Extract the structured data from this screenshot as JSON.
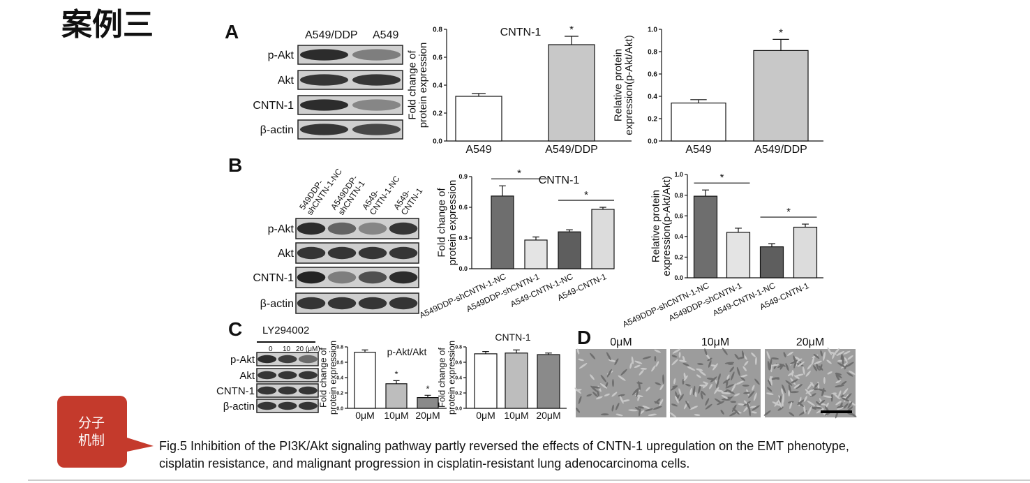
{
  "header": {
    "title": "案例三"
  },
  "panels": {
    "A": {
      "label": "A",
      "blot_columns": [
        "A549/DDP",
        "A549"
      ],
      "blot_rows": [
        "p-Akt",
        "Akt",
        "CNTN-1",
        "β-actin"
      ]
    },
    "B": {
      "label": "B",
      "blot_columns": [
        [
          "549DDP-",
          "shCNTN-1-NC"
        ],
        [
          "A549DDP-",
          "shCNTN-1"
        ],
        [
          "A549-",
          "CNTN-1-NC"
        ],
        [
          "A549-",
          "CNTN-1"
        ]
      ],
      "blot_rows": [
        "p-Akt",
        "Akt",
        "CNTN-1",
        "β-actin"
      ]
    },
    "C": {
      "label": "C",
      "treatment": "LY294002",
      "doses": [
        "0",
        "10",
        "20 (μM)"
      ],
      "blot_rows": [
        "p-Akt",
        "Akt",
        "CNTN-1",
        "β-actin"
      ]
    },
    "D": {
      "label": "D",
      "images": [
        "0μM",
        "10μM",
        "20μM"
      ]
    }
  },
  "callout": [
    "分子",
    "机制"
  ],
  "caption": [
    "Fig.5 Inhibition of the PI3K/Akt signaling pathway partly reversed the effects of CNTN-1 upregulation on the EMT phenotype,",
    "cisplatin resistance, and malignant progression in cisplatin-resistant lung adenocarcinoma cells."
  ],
  "chart_data": [
    {
      "type": "bar",
      "title": "CNTN-1",
      "ylabel": [
        "Fold change of",
        "protein expression"
      ],
      "categories": [
        "A549",
        "A549/DDP"
      ],
      "values": [
        0.32,
        0.69
      ],
      "errors": [
        0.02,
        0.06
      ],
      "colors": [
        "#ffffff",
        "#c8c8c8"
      ],
      "value_annotations": [
        null,
        "*"
      ],
      "ylim": [
        0,
        0.8
      ],
      "yticks": [
        {
          "value": 0,
          "label": "0.0"
        },
        0.2,
        0.4,
        0.6,
        0.8
      ]
    },
    {
      "type": "bar",
      "ylabel": [
        "Relative protein",
        "expression(p-Akt/Akt)"
      ],
      "categories": [
        "A549",
        "A549/DDP"
      ],
      "values": [
        0.34,
        0.81
      ],
      "errors": [
        0.03,
        0.1
      ],
      "colors": [
        "#ffffff",
        "#c8c8c8"
      ],
      "value_annotations": [
        null,
        "*"
      ],
      "ylim": [
        0,
        1
      ],
      "yticks": [
        {
          "value": 0,
          "label": "0.0"
        },
        0.2,
        0.4,
        0.6,
        0.8,
        {
          "value": 1,
          "label": "1.0"
        }
      ]
    },
    {
      "type": "bar",
      "title": "CNTN-1",
      "ylabel": [
        "Fold change of",
        "protein expression"
      ],
      "categories": [
        "A549DDP-shCNTN-1-NC",
        "A549DDP-shCNTN-1",
        "A549-CNTN-1-NC",
        "A549-CNTN-1"
      ],
      "values": [
        0.71,
        0.28,
        0.36,
        0.58
      ],
      "errors": [
        0.1,
        0.03,
        0.02,
        0.02
      ],
      "colors": [
        "#6e6e6e",
        "#e4e4e4",
        "#5e5e5e",
        "#dcdcdc"
      ],
      "brackets": [
        {
          "from": "A549DDP-shCNTN-1-NC",
          "to": "A549DDP-shCNTN-1",
          "label": "*"
        },
        {
          "from": "A549-CNTN-1-NC",
          "to": "A549-CNTN-1",
          "label": "*"
        }
      ],
      "ylim": [
        0,
        0.9
      ],
      "yticks": [
        {
          "value": 0,
          "label": "0.0"
        },
        0.3,
        0.6,
        0.9
      ]
    },
    {
      "type": "bar",
      "ylabel": [
        "Relative protein",
        "expression(p-Akt/Akt)"
      ],
      "categories": [
        "A549DDP-shCNTN-1-NC",
        "A549DDP-shCNTN-1",
        "A549-CNTN-1-NC",
        "A549-CNTN-1"
      ],
      "values": [
        0.79,
        0.44,
        0.3,
        0.49
      ],
      "errors": [
        0.06,
        0.04,
        0.03,
        0.03
      ],
      "colors": [
        "#6e6e6e",
        "#e4e4e4",
        "#5e5e5e",
        "#dcdcdc"
      ],
      "brackets": [
        {
          "from": "A549DDP-shCNTN-1-NC",
          "to": "A549DDP-shCNTN-1",
          "label": "*"
        },
        {
          "from": "A549-CNTN-1-NC",
          "to": "A549-CNTN-1",
          "label": "*"
        }
      ],
      "ylim": [
        0,
        1
      ],
      "yticks": [
        {
          "value": 0,
          "label": "0.0"
        },
        0.2,
        0.4,
        0.6,
        0.8,
        {
          "value": 1,
          "label": "1.0"
        }
      ]
    },
    {
      "type": "bar",
      "title": "p-Akt/Akt",
      "ylabel": [
        "Fold change of",
        "protein expression"
      ],
      "categories": [
        "0μM",
        "10μM",
        "20μM"
      ],
      "values": [
        0.73,
        0.32,
        0.14
      ],
      "errors": [
        0.03,
        0.04,
        0.03
      ],
      "colors": [
        "#ffffff",
        "#bdbdbd",
        "#8a8a8a"
      ],
      "value_annotations": [
        null,
        "*",
        "*"
      ],
      "ylim": [
        0,
        0.8
      ],
      "yticks": [
        {
          "value": 0,
          "label": "0.0"
        },
        0.2,
        0.4,
        0.6,
        0.8
      ]
    },
    {
      "type": "bar",
      "title": "CNTN-1",
      "ylabel": [
        "Fold change of",
        "protein expression"
      ],
      "categories": [
        "0μM",
        "10μM",
        "20μM"
      ],
      "values": [
        0.71,
        0.72,
        0.7
      ],
      "errors": [
        0.03,
        0.04,
        0.02
      ],
      "colors": [
        "#ffffff",
        "#bdbdbd",
        "#8a8a8a"
      ],
      "ylim": [
        0,
        0.8
      ],
      "yticks": [
        {
          "value": 0,
          "label": "0.0"
        },
        0.2,
        0.4,
        0.6,
        0.8
      ]
    }
  ]
}
